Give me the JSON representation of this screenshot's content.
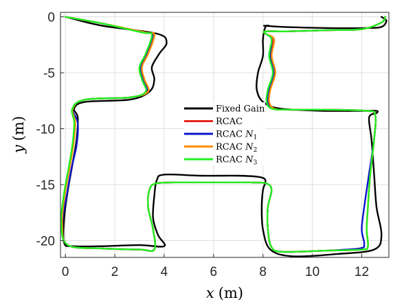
{
  "chart_data": {
    "type": "line",
    "title": "",
    "xlabel": {
      "var": "x",
      "unit": "(m)"
    },
    "ylabel": {
      "var": "y",
      "unit": "(m)"
    },
    "xlim": [
      -0.2,
      13.1
    ],
    "ylim": [
      -21.5,
      0.4
    ],
    "xticks": [
      0,
      2,
      4,
      6,
      8,
      10,
      12
    ],
    "xtick_labels": [
      "0",
      "2",
      "4",
      "6",
      "8",
      "10",
      "12"
    ],
    "yticks": [
      0,
      -5,
      -10,
      -15,
      -20
    ],
    "ytick_labels": [
      "0",
      "-5",
      "-10",
      "-15",
      "-20"
    ],
    "grid": true,
    "legend_position": "center",
    "series": [
      {
        "name": "Fixed Gain",
        "color": "#000000",
        "x": [
          0.0,
          1.5,
          3.7,
          4.1,
          3.8,
          3.5,
          3.6,
          3.4,
          2.6,
          0.8,
          0.35,
          0.5,
          0.45,
          0.3,
          0.1,
          -0.05,
          -0.05,
          0.3,
          1.5,
          3.0,
          4.0,
          3.75,
          3.55,
          3.6,
          3.7,
          4.0,
          5.5,
          7.0,
          7.8,
          8.1,
          8.0,
          7.95,
          8.0,
          8.3,
          9.2,
          11.0,
          12.5,
          12.8,
          12.6,
          12.5,
          12.4,
          12.3,
          12.6,
          12.6,
          12.1,
          10.5,
          8.7,
          8.0,
          7.75,
          7.8,
          8.0,
          8.0,
          8.1,
          8.25,
          8.1,
          8.1,
          8.8,
          10.5,
          12.2,
          12.8,
          13.0,
          12.9,
          12.8
        ],
        "y": [
          0.0,
          -0.8,
          -1.5,
          -2.3,
          -3.3,
          -4.5,
          -5.6,
          -6.7,
          -7.4,
          -7.6,
          -8.2,
          -9.0,
          -11.0,
          -13.0,
          -15.5,
          -18.0,
          -20.2,
          -20.5,
          -20.5,
          -20.4,
          -20.5,
          -19.5,
          -18.0,
          -16.0,
          -14.6,
          -14.1,
          -14.2,
          -14.2,
          -14.3,
          -14.6,
          -15.5,
          -17.0,
          -19.0,
          -20.8,
          -21.4,
          -21.2,
          -20.8,
          -19.5,
          -17.0,
          -14.0,
          -11.0,
          -9.0,
          -8.6,
          -8.4,
          -8.4,
          -8.4,
          -8.2,
          -7.6,
          -6.5,
          -5.0,
          -3.5,
          -2.0,
          -0.9,
          -0.8,
          -0.8,
          -0.8,
          -0.9,
          -1.0,
          -1.0,
          -0.9,
          -0.4,
          -0.15,
          0.0
        ]
      },
      {
        "name": "RCAC",
        "color": "#e8231c",
        "x": [
          0.0,
          1.5,
          3.15,
          3.55,
          3.3,
          3.05,
          3.15,
          3.3,
          2.6,
          0.8,
          0.3,
          0.38,
          0.3,
          0.15,
          -0.05,
          -0.15,
          0.1,
          1.5,
          3.0,
          3.6,
          3.55,
          3.35,
          3.4,
          3.65,
          4.5,
          6.0,
          7.5,
          8.15,
          8.35,
          8.2,
          8.2,
          8.35,
          8.8,
          10.5,
          12.0,
          12.25,
          12.2,
          12.25,
          12.35,
          12.5,
          12.55,
          12.2,
          10.5,
          9.0,
          8.4,
          8.2,
          8.25,
          8.45,
          8.3,
          8.4,
          8.1,
          8.1,
          9.0,
          10.5,
          12.0,
          12.8,
          12.95
        ],
        "y": [
          0.0,
          -0.6,
          -1.4,
          -1.6,
          -3.3,
          -4.5,
          -5.6,
          -6.7,
          -7.2,
          -7.4,
          -8.2,
          -9.5,
          -11.5,
          -13.5,
          -16.0,
          -18.5,
          -20.4,
          -20.7,
          -20.8,
          -20.8,
          -19.0,
          -17.0,
          -15.5,
          -14.9,
          -14.8,
          -14.8,
          -14.8,
          -14.9,
          -15.5,
          -17.0,
          -19.0,
          -20.6,
          -21.0,
          -20.9,
          -20.8,
          -20.5,
          -19.0,
          -17.0,
          -14.0,
          -11.0,
          -8.8,
          -8.4,
          -8.3,
          -8.3,
          -8.2,
          -7.6,
          -6.5,
          -5.0,
          -3.5,
          -2.0,
          -1.5,
          -1.3,
          -1.3,
          -1.2,
          -1.1,
          -0.5,
          0.0
        ]
      },
      {
        "name": "RCAC N1",
        "color": "#0a14c8",
        "x": [
          0.0,
          1.5,
          3.2,
          3.55,
          3.3,
          3.05,
          3.15,
          3.3,
          2.6,
          0.8,
          0.3,
          0.5,
          0.45,
          0.25,
          0.05,
          -0.12,
          0.1,
          1.5,
          3.0,
          3.6,
          3.55,
          3.35,
          3.4,
          3.65,
          4.5,
          6.0,
          7.5,
          8.15,
          8.35,
          8.2,
          8.2,
          8.35,
          8.8,
          10.5,
          11.9,
          12.1,
          12.0,
          12.1,
          12.3,
          12.5,
          12.55,
          12.2,
          10.5,
          9.0,
          8.4,
          8.2,
          8.25,
          8.45,
          8.3,
          8.35,
          8.1,
          8.1,
          9.0,
          10.5,
          12.0,
          12.8,
          12.95
        ],
        "y": [
          0.0,
          -0.6,
          -1.4,
          -1.6,
          -3.3,
          -4.5,
          -5.6,
          -6.7,
          -7.2,
          -7.4,
          -8.2,
          -9.5,
          -11.5,
          -13.5,
          -16.0,
          -18.5,
          -20.4,
          -20.7,
          -20.8,
          -20.8,
          -19.0,
          -17.0,
          -15.5,
          -14.9,
          -14.8,
          -14.8,
          -14.8,
          -14.9,
          -15.5,
          -17.0,
          -19.0,
          -20.6,
          -21.0,
          -20.9,
          -20.7,
          -20.3,
          -19.0,
          -17.0,
          -14.0,
          -11.0,
          -8.8,
          -8.4,
          -8.3,
          -8.3,
          -8.2,
          -7.6,
          -6.5,
          -5.0,
          -3.5,
          -2.0,
          -1.5,
          -1.3,
          -1.3,
          -1.2,
          -1.1,
          -0.5,
          0.0
        ]
      },
      {
        "name": "RCAC N2",
        "color": "#ff8c00",
        "x": [
          0.0,
          1.5,
          3.25,
          3.6,
          3.35,
          3.1,
          3.2,
          3.35,
          2.6,
          0.8,
          0.3,
          0.4,
          0.32,
          0.17,
          -0.03,
          -0.13,
          0.1,
          1.5,
          3.0,
          3.6,
          3.55,
          3.35,
          3.4,
          3.65,
          4.5,
          6.0,
          7.5,
          8.15,
          8.35,
          8.2,
          8.2,
          8.35,
          8.8,
          10.5,
          12.0,
          12.25,
          12.2,
          12.25,
          12.35,
          12.5,
          12.55,
          12.2,
          10.5,
          9.0,
          8.45,
          8.25,
          8.3,
          8.5,
          8.35,
          8.45,
          8.1,
          8.1,
          9.0,
          10.5,
          12.0,
          12.8,
          12.95
        ],
        "y": [
          0.0,
          -0.6,
          -1.4,
          -1.6,
          -3.3,
          -4.5,
          -5.6,
          -6.7,
          -7.2,
          -7.4,
          -8.2,
          -9.5,
          -11.5,
          -13.5,
          -16.0,
          -18.5,
          -20.4,
          -20.7,
          -20.8,
          -20.8,
          -19.0,
          -17.0,
          -15.5,
          -14.9,
          -14.8,
          -14.8,
          -14.8,
          -14.9,
          -15.5,
          -17.0,
          -19.0,
          -20.6,
          -21.0,
          -20.9,
          -20.8,
          -20.5,
          -19.0,
          -17.0,
          -14.0,
          -11.0,
          -8.8,
          -8.4,
          -8.3,
          -8.3,
          -8.2,
          -7.6,
          -6.5,
          -5.0,
          -3.5,
          -2.0,
          -1.5,
          -1.3,
          -1.3,
          -1.2,
          -1.1,
          -0.5,
          0.0
        ]
      },
      {
        "name": "RCAC N3",
        "color": "#22ee22",
        "x": [
          0.0,
          1.5,
          3.1,
          3.5,
          3.25,
          3.0,
          3.1,
          3.25,
          2.6,
          0.8,
          0.28,
          0.36,
          0.28,
          0.13,
          -0.07,
          -0.17,
          0.1,
          1.5,
          3.0,
          3.6,
          3.55,
          3.35,
          3.4,
          3.65,
          4.5,
          6.0,
          7.5,
          8.15,
          8.35,
          8.2,
          8.2,
          8.35,
          8.8,
          10.5,
          12.0,
          12.25,
          12.2,
          12.25,
          12.35,
          12.5,
          12.55,
          12.2,
          10.5,
          9.0,
          8.35,
          8.15,
          8.2,
          8.4,
          8.25,
          8.35,
          8.1,
          8.1,
          9.0,
          10.5,
          12.0,
          12.8,
          12.95
        ],
        "y": [
          0.0,
          -0.6,
          -1.4,
          -1.6,
          -3.3,
          -4.5,
          -5.6,
          -6.7,
          -7.2,
          -7.4,
          -8.2,
          -9.5,
          -11.5,
          -13.5,
          -16.0,
          -18.5,
          -20.4,
          -20.7,
          -20.8,
          -20.8,
          -19.0,
          -17.0,
          -15.5,
          -14.9,
          -14.8,
          -14.8,
          -14.8,
          -14.9,
          -15.5,
          -17.0,
          -19.0,
          -20.6,
          -21.0,
          -20.9,
          -20.8,
          -20.5,
          -19.0,
          -17.0,
          -14.0,
          -11.0,
          -8.8,
          -8.4,
          -8.3,
          -8.3,
          -8.2,
          -7.6,
          -6.5,
          -5.0,
          -3.5,
          -2.0,
          -1.5,
          -1.3,
          -1.3,
          -1.2,
          -1.1,
          -0.5,
          0.0
        ]
      }
    ]
  }
}
